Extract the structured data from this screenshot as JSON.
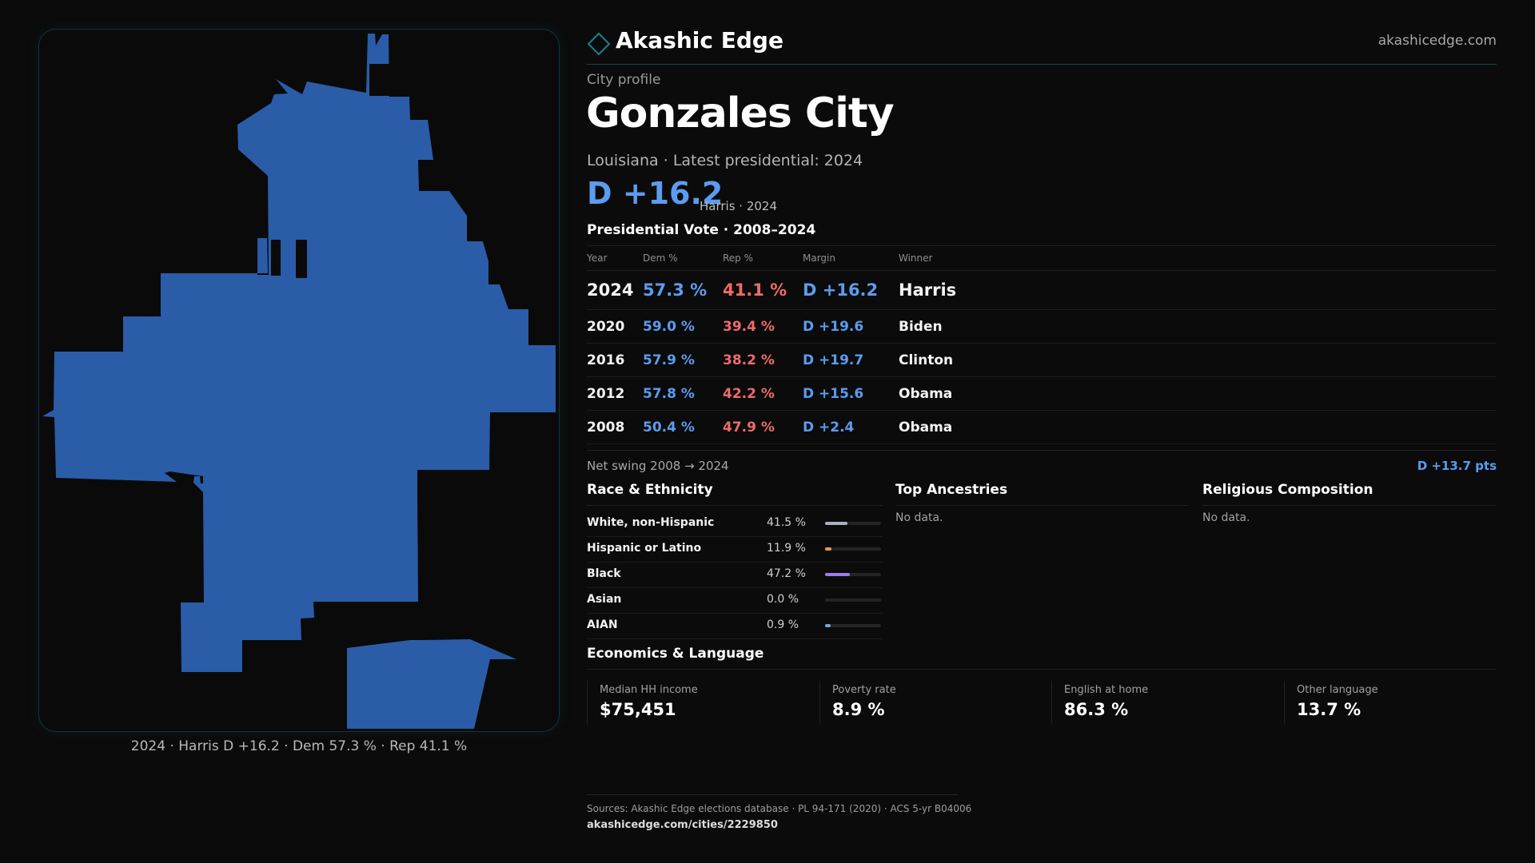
{
  "brand": {
    "name": "Akashic Edge",
    "site": "akashicedge.com"
  },
  "profile": {
    "eyebrow": "City profile",
    "city": "Gonzales City",
    "subtitle": "Louisiana · Latest presidential: 2024",
    "margin": "D +16.2",
    "margin_note": "Harris · 2024"
  },
  "map": {
    "caption": "2024 · Harris D +16.2 · Dem 57.3 % · Rep 41.1 %",
    "fill_color": "#2a5ca8"
  },
  "vote_table": {
    "heading": "Presidential Vote · 2008–2024",
    "headers": {
      "year": "Year",
      "dem": "Dem %",
      "rep": "Rep %",
      "margin": "Margin",
      "winner": "Winner"
    },
    "rows": [
      {
        "year": "2024",
        "dem": "57.3 %",
        "rep": "41.1 %",
        "margin": "D +16.2",
        "winner": "Harris"
      },
      {
        "year": "2020",
        "dem": "59.0 %",
        "rep": "39.4 %",
        "margin": "D +19.6",
        "winner": "Biden"
      },
      {
        "year": "2016",
        "dem": "57.9 %",
        "rep": "38.2 %",
        "margin": "D +19.7",
        "winner": "Clinton"
      },
      {
        "year": "2012",
        "dem": "57.8 %",
        "rep": "42.2 %",
        "margin": "D +15.6",
        "winner": "Obama"
      },
      {
        "year": "2008",
        "dem": "50.4 %",
        "rep": "47.9 %",
        "margin": "D +2.4",
        "winner": "Obama"
      }
    ]
  },
  "swing": {
    "label": "Net swing 2008 → 2024",
    "value": "D +13.7 pts"
  },
  "race": {
    "title": "Race & Ethnicity",
    "rows": [
      {
        "label": "White, non-Hispanic",
        "pct": "41.5 %",
        "share": 0.415,
        "color": "#a9b1bd"
      },
      {
        "label": "Hispanic or Latino",
        "pct": "11.9 %",
        "share": 0.119,
        "color": "#e89a3c"
      },
      {
        "label": "Black",
        "pct": "47.2 %",
        "share": 0.472,
        "color": "#9b7ee6"
      },
      {
        "label": "Asian",
        "pct": "0.0 %",
        "share": 0.0,
        "color": "#4cc0c0"
      },
      {
        "label": "AIAN",
        "pct": "0.9 %",
        "share": 0.009,
        "color": "#6fa8dc"
      }
    ]
  },
  "ancestries": {
    "title": "Top Ancestries",
    "empty": "No data."
  },
  "religion": {
    "title": "Religious Composition",
    "empty": "No data."
  },
  "economics": {
    "title": "Economics & Language",
    "items": [
      {
        "label": "Median HH income",
        "value": "$75,451"
      },
      {
        "label": "Poverty rate",
        "value": "8.9 %"
      },
      {
        "label": "English at home",
        "value": "86.3 %"
      },
      {
        "label": "Other language",
        "value": "13.7 %"
      }
    ]
  },
  "footer": {
    "sources": "Sources: Akashic Edge elections database · PL 94-171 (2020) · ACS 5-yr B04006",
    "url": "akashicedge.com/cities/2229850"
  },
  "colors": {
    "dem": "#5b9cf0",
    "rep": "#f06a6a",
    "accent": "#15434a"
  }
}
